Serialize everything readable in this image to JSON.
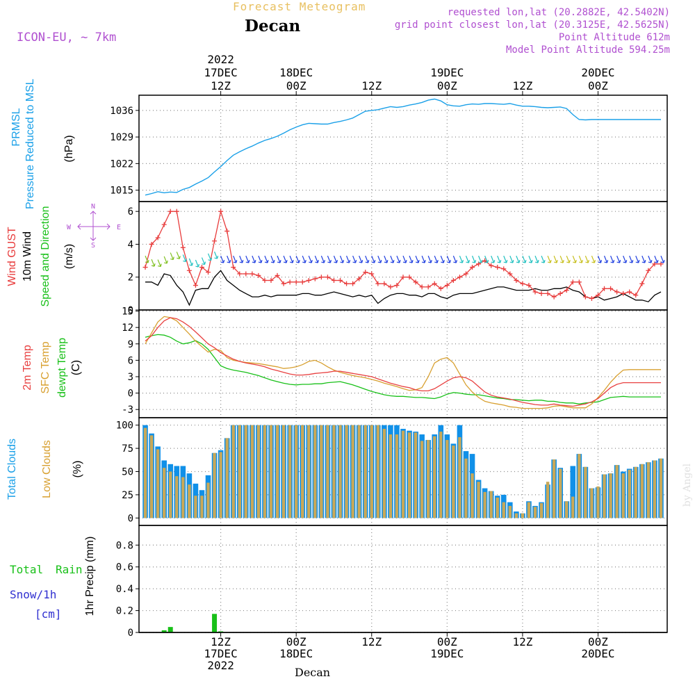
{
  "header": {
    "title": "Forecast Meteogram",
    "station": "Decan",
    "model": "ICON-EU, ~ 7km",
    "requested": "requested lon,lat (20.2882E, 42.5402N)",
    "gridpoint": "grid point closest lon,lat (20.3125E, 42.5625N)",
    "point_alt": "Point Altitude 612m",
    "model_alt": "Model Point Altitude 594.25m"
  },
  "footer": {
    "station": "Decan",
    "credit": "by Angel"
  },
  "time_axis": {
    "top": [
      {
        "t": 12,
        "lines": [
          "2022",
          "17DEC",
          "12Z"
        ]
      },
      {
        "t": 24,
        "lines": [
          "18DEC",
          "00Z"
        ]
      },
      {
        "t": 36,
        "lines": [
          "12Z"
        ]
      },
      {
        "t": 48,
        "lines": [
          "19DEC",
          "00Z"
        ]
      },
      {
        "t": 60,
        "lines": [
          "12Z"
        ]
      },
      {
        "t": 72,
        "lines": [
          "20DEC",
          "00Z"
        ]
      }
    ],
    "bottom": [
      {
        "t": 12,
        "lines": [
          "12Z",
          "17DEC",
          "2022"
        ]
      },
      {
        "t": 24,
        "lines": [
          "00Z",
          "18DEC"
        ]
      },
      {
        "t": 36,
        "lines": [
          "12Z"
        ]
      },
      {
        "t": 48,
        "lines": [
          "00Z",
          "19DEC"
        ]
      },
      {
        "t": 60,
        "lines": [
          "12Z"
        ]
      },
      {
        "t": 72,
        "lines": [
          "00Z",
          "20DEC"
        ]
      }
    ]
  },
  "panel_labels": {
    "pressure": {
      "a": "PRMSL",
      "b": "Pressure Reduced to MSL",
      "unit": "(hPa)"
    },
    "wind": {
      "a": "Wind GUST",
      "b": "10m Wind",
      "c": "Speed and Direction",
      "unit": "(m/s)"
    },
    "compass": {
      "n": "N",
      "s": "S",
      "e": "E",
      "w": "W"
    },
    "temp": {
      "a": "2m Temp",
      "b": "SFC Temp",
      "c": "dewpt Temp",
      "unit": "(C)"
    },
    "cloud": {
      "a": "Total Clouds",
      "b": "Low Clouds",
      "unit": "(%)"
    },
    "precip": {
      "a": "Total",
      "b": "Rain",
      "c": "Snow/1h",
      "d": "[cm]",
      "unit": "1hr Precip (mm)"
    }
  },
  "colors": {
    "pressure": "#1aa0e8",
    "gust": "#e83c3c",
    "wind10m": "#000000",
    "t2m": "#e84040",
    "sfc": "#d8a030",
    "dew": "#18c018",
    "total_cloud": "#1090e8",
    "low_cloud": "#c8a858",
    "rain": "#18c018",
    "grid": "#888888",
    "purple": "#b050d0"
  },
  "chart_data": [
    {
      "type": "line",
      "name": "pressure",
      "ylim": [
        1012,
        1040
      ],
      "yticks": [
        1015,
        1022,
        1029,
        1036
      ],
      "x": [
        0,
        1,
        2,
        3,
        4,
        5,
        6,
        7,
        8,
        9,
        10,
        11,
        12,
        13,
        14,
        15,
        16,
        17,
        18,
        19,
        20,
        21,
        22,
        23,
        24,
        25,
        26,
        27,
        28,
        29,
        30,
        31,
        32,
        33,
        34,
        35,
        36,
        37,
        38,
        39,
        40,
        41,
        42,
        43,
        44,
        45,
        46,
        47,
        48,
        49,
        50,
        51,
        52,
        53,
        54,
        55,
        56,
        57,
        58,
        59,
        60,
        61,
        62,
        63,
        64,
        65,
        66,
        67,
        68,
        69,
        70,
        71,
        72,
        73,
        74,
        75,
        76,
        77,
        78,
        79,
        80,
        81,
        82
      ],
      "values": [
        1013.7,
        1014.1,
        1014.6,
        1014.3,
        1014.5,
        1014.4,
        1015.2,
        1015.7,
        1016.6,
        1017.4,
        1018.3,
        1019.8,
        1021.2,
        1022.8,
        1024.2,
        1025.1,
        1025.9,
        1026.6,
        1027.4,
        1028.1,
        1028.6,
        1029.2,
        1030.0,
        1030.9,
        1031.6,
        1032.2,
        1032.6,
        1032.5,
        1032.4,
        1032.4,
        1032.8,
        1033.1,
        1033.5,
        1034.0,
        1034.9,
        1035.8,
        1036.0,
        1036.2,
        1036.6,
        1037.0,
        1036.8,
        1037.0,
        1037.4,
        1037.7,
        1038.1,
        1038.7,
        1039.0,
        1038.5,
        1037.5,
        1037.2,
        1037.1,
        1037.5,
        1037.7,
        1037.6,
        1037.8,
        1037.8,
        1037.7,
        1037.6,
        1037.8,
        1037.4,
        1037.1,
        1037.1,
        1037.0,
        1036.8,
        1036.7,
        1036.8,
        1036.9,
        1036.5,
        1034.9,
        1033.6,
        1033.5,
        1033.6,
        1033.6,
        1033.6,
        1033.6,
        1033.6,
        1033.6,
        1033.6,
        1033.6,
        1033.6,
        1033.6,
        1033.6,
        1033.6
      ]
    },
    {
      "type": "line",
      "name": "wind",
      "ylim": [
        0,
        6.6
      ],
      "yticks": [
        0,
        2,
        4,
        6
      ],
      "gust": [
        2.6,
        4.0,
        4.4,
        5.2,
        6.0,
        6.0,
        3.8,
        2.4,
        1.5,
        2.6,
        2.3,
        4.2,
        6.0,
        4.8,
        2.6,
        2.2,
        2.2,
        2.2,
        2.1,
        1.8,
        1.8,
        2.1,
        1.6,
        1.7,
        1.7,
        1.7,
        1.8,
        1.9,
        2.0,
        2.0,
        1.8,
        1.8,
        1.6,
        1.6,
        1.9,
        2.3,
        2.2,
        1.6,
        1.6,
        1.4,
        1.5,
        2.0,
        2.0,
        1.7,
        1.4,
        1.4,
        1.6,
        1.3,
        1.5,
        1.8,
        2.0,
        2.2,
        2.6,
        2.8,
        3.0,
        2.7,
        2.6,
        2.5,
        2.2,
        1.8,
        1.6,
        1.5,
        1.1,
        1.0,
        1.0,
        0.8,
        1.0,
        1.2,
        1.7,
        1.7,
        0.8,
        0.7,
        0.9,
        1.3,
        1.3,
        1.1,
        1.0,
        1.1,
        0.9,
        1.6,
        2.4,
        2.8,
        2.8
      ],
      "wind10m": [
        1.7,
        1.7,
        1.5,
        2.2,
        2.1,
        1.5,
        1.1,
        0.3,
        1.2,
        1.3,
        1.3,
        2.0,
        2.4,
        1.8,
        1.5,
        1.2,
        1.0,
        0.8,
        0.8,
        0.9,
        0.8,
        0.9,
        0.9,
        0.9,
        0.9,
        1.0,
        1.0,
        0.9,
        0.9,
        1.0,
        1.1,
        1.0,
        0.9,
        0.8,
        0.9,
        0.8,
        0.9,
        0.4,
        0.7,
        0.9,
        1.0,
        1.0,
        0.9,
        0.9,
        0.8,
        1.0,
        1.0,
        0.8,
        0.7,
        0.9,
        1.0,
        1.0,
        1.0,
        1.1,
        1.2,
        1.3,
        1.4,
        1.4,
        1.3,
        1.2,
        1.2,
        1.2,
        1.3,
        1.2,
        1.2,
        1.3,
        1.3,
        1.4,
        1.2,
        1.1,
        0.8,
        0.7,
        0.8,
        0.6,
        0.7,
        0.8,
        1.0,
        0.8,
        0.6,
        0.6,
        0.5,
        0.9,
        1.1
      ]
    },
    {
      "type": "line",
      "name": "temperature",
      "ylim": [
        -4.5,
        15.2
      ],
      "yticks": [
        -3,
        0,
        3,
        6,
        9,
        12,
        15
      ],
      "t2m": [
        9.5,
        10.5,
        12.0,
        13.2,
        13.8,
        13.6,
        13.0,
        12.2,
        11.2,
        10.1,
        9.0,
        8.3,
        7.4,
        6.8,
        6.2,
        5.8,
        5.5,
        5.3,
        5.1,
        4.8,
        4.4,
        4.1,
        3.8,
        3.5,
        3.3,
        3.3,
        3.4,
        3.6,
        3.7,
        3.8,
        4.0,
        4.0,
        3.8,
        3.6,
        3.4,
        3.2,
        3.0,
        2.6,
        2.2,
        1.8,
        1.5,
        1.2,
        1.0,
        0.6,
        0.4,
        0.4,
        0.8,
        1.5,
        2.2,
        2.8,
        3.0,
        2.8,
        2.2,
        1.2,
        0.2,
        -0.4,
        -0.7,
        -0.9,
        -1.1,
        -1.4,
        -1.7,
        -1.9,
        -2.1,
        -2.2,
        -2.2,
        -2.0,
        -2.2,
        -2.3,
        -2.4,
        -2.2,
        -2.0,
        -1.6,
        -1.0,
        0.0,
        1.0,
        1.6,
        1.9,
        1.9,
        1.9,
        1.9,
        1.9,
        1.9,
        1.9
      ],
      "sfc": [
        9.0,
        11.0,
        13.0,
        14.0,
        13.8,
        13.2,
        12.0,
        10.8,
        9.5,
        8.5,
        7.5,
        8.0,
        7.8,
        6.5,
        6.0,
        5.8,
        5.6,
        5.5,
        5.4,
        5.2,
        5.0,
        4.8,
        4.5,
        4.6,
        4.8,
        5.2,
        5.8,
        6.0,
        5.5,
        4.8,
        4.2,
        3.8,
        3.5,
        3.2,
        3.0,
        2.8,
        2.5,
        2.2,
        1.8,
        1.5,
        1.2,
        0.8,
        0.5,
        0.6,
        1.0,
        3.0,
        5.5,
        6.2,
        6.5,
        5.5,
        3.5,
        1.5,
        0.2,
        -0.8,
        -1.5,
        -1.8,
        -2.0,
        -2.2,
        -2.5,
        -2.6,
        -2.8,
        -2.8,
        -2.8,
        -2.8,
        -2.7,
        -2.4,
        -2.3,
        -2.5,
        -2.7,
        -2.7,
        -2.7,
        -2.0,
        -0.8,
        0.5,
        2.0,
        3.2,
        4.2,
        4.3,
        4.3,
        4.3,
        4.3,
        4.3,
        4.3
      ],
      "dew": [
        10.2,
        10.5,
        10.7,
        10.6,
        10.2,
        9.5,
        9.0,
        9.2,
        9.6,
        9.0,
        8.0,
        6.5,
        5.0,
        4.5,
        4.2,
        4.0,
        3.8,
        3.5,
        3.2,
        2.8,
        2.4,
        2.1,
        1.8,
        1.6,
        1.5,
        1.6,
        1.6,
        1.7,
        1.7,
        1.9,
        2.0,
        2.1,
        1.8,
        1.5,
        1.1,
        0.7,
        0.3,
        0.0,
        -0.3,
        -0.5,
        -0.6,
        -0.6,
        -0.7,
        -0.8,
        -0.8,
        -0.9,
        -1.0,
        -0.7,
        -0.2,
        0.1,
        0.0,
        -0.2,
        -0.3,
        -0.3,
        -0.5,
        -0.7,
        -0.9,
        -1.0,
        -1.2,
        -1.2,
        -1.3,
        -1.4,
        -1.3,
        -1.3,
        -1.5,
        -1.5,
        -1.7,
        -1.8,
        -1.8,
        -2.0,
        -1.8,
        -1.7,
        -1.6,
        -1.2,
        -0.8,
        -0.7,
        -0.6,
        -0.7,
        -0.7,
        -0.7,
        -0.7,
        -0.7,
        -0.7
      ]
    },
    {
      "type": "bar",
      "name": "clouds",
      "ylim": [
        -8,
        108
      ],
      "yticks": [
        0,
        25,
        50,
        75,
        100
      ],
      "total": [
        100,
        91,
        77,
        62,
        58,
        56,
        56,
        48,
        37,
        30,
        46,
        70,
        73,
        86,
        100,
        100,
        100,
        100,
        100,
        100,
        100,
        100,
        100,
        100,
        100,
        100,
        100,
        100,
        100,
        100,
        100,
        100,
        100,
        100,
        100,
        100,
        100,
        100,
        100,
        100,
        100,
        96,
        94,
        93,
        90,
        84,
        90,
        100,
        90,
        80,
        100,
        72,
        69,
        41,
        32,
        29,
        24,
        25,
        17,
        7,
        5,
        18,
        13,
        17,
        36,
        63,
        54,
        18,
        56,
        69,
        55,
        32,
        33,
        47,
        48,
        57,
        50,
        53,
        55,
        58,
        60,
        62,
        64
      ],
      "low": [
        97,
        89,
        74,
        54,
        50,
        45,
        44,
        36,
        24,
        24,
        38,
        70,
        71,
        86,
        100,
        100,
        100,
        100,
        100,
        100,
        100,
        100,
        100,
        100,
        100,
        100,
        100,
        100,
        100,
        100,
        100,
        100,
        100,
        100,
        100,
        100,
        100,
        100,
        96,
        90,
        90,
        94,
        92,
        92,
        83,
        84,
        88,
        93,
        84,
        78,
        87,
        64,
        48,
        39,
        28,
        29,
        22,
        17,
        13,
        5,
        5,
        17,
        12,
        16,
        39,
        63,
        53,
        18,
        23,
        69,
        55,
        32,
        34,
        47,
        48,
        57,
        48,
        52,
        55,
        58,
        60,
        62,
        64
      ]
    },
    {
      "type": "bar",
      "name": "precip",
      "ylim": [
        0,
        0.98
      ],
      "yticks": [
        0,
        0.2,
        0.4,
        0.6,
        0.8
      ],
      "rain": [
        0,
        0,
        0,
        0.02,
        0.05,
        0,
        0,
        0,
        0,
        0,
        0,
        0.17,
        0.01,
        0,
        0,
        0,
        0,
        0,
        0,
        0,
        0,
        0,
        0,
        0,
        0,
        0,
        0,
        0,
        0,
        0,
        0,
        0,
        0,
        0,
        0,
        0,
        0,
        0,
        0,
        0,
        0,
        0,
        0,
        0,
        0,
        0,
        0,
        0,
        0,
        0,
        0,
        0,
        0,
        0,
        0,
        0,
        0,
        0,
        0,
        0,
        0,
        0,
        0,
        0,
        0,
        0,
        0,
        0,
        0,
        0,
        0,
        0,
        0,
        0,
        0,
        0,
        0,
        0,
        0,
        0,
        0,
        0,
        0
      ]
    }
  ]
}
